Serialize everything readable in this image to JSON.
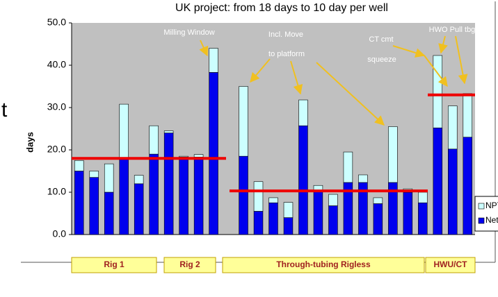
{
  "chart_data": {
    "type": "stacked_bar",
    "title": "UK project: from 18 days to 10 day per well",
    "y_label": "days",
    "left_fragment": "t",
    "categories": [
      null,
      null,
      null,
      null,
      null,
      null,
      null,
      null,
      null,
      null,
      null,
      null,
      null,
      null,
      null,
      null,
      null,
      null,
      null,
      null,
      null,
      null,
      null,
      null,
      null,
      null,
      null
    ],
    "series": [
      {
        "name": "Net",
        "color": "#0000ee",
        "values": [
          15,
          13.5,
          10,
          18,
          12,
          19,
          24,
          18.3,
          18.3,
          38.3,
          null,
          18.5,
          5.5,
          7.5,
          4,
          25.7,
          10.5,
          6.8,
          12.3,
          12.3,
          7.3,
          12.3,
          10,
          7.5,
          25.2,
          20.2,
          23
        ]
      },
      {
        "name": "NPT",
        "color": "#ccffff",
        "values": [
          2.5,
          1.5,
          6.7,
          12.8,
          2,
          6.7,
          0.5,
          0.2,
          0.6,
          5.7,
          null,
          16.5,
          7,
          1.2,
          3.6,
          6.1,
          1.1,
          2.7,
          7.2,
          1.8,
          1.4,
          13.2,
          0.8,
          2.5,
          17.1,
          10.2,
          10.3
        ]
      }
    ],
    "ylim": [
      0,
      50
    ],
    "yticks": [
      {
        "value": 0,
        "label": "0.0"
      },
      {
        "value": 10,
        "label": "10.0"
      },
      {
        "value": 20,
        "label": "20.0"
      },
      {
        "value": 30,
        "label": "30.0"
      },
      {
        "value": 40,
        "label": "40.0"
      },
      {
        "value": 50,
        "label": "50.0"
      }
    ],
    "reference_lines": [
      18,
      10.3,
      33
    ],
    "reference_color": "#ee0000",
    "annotations": [
      "Milling Window",
      "Incl. Move",
      "to platform",
      "CT cmt",
      "squeeze",
      "HWO Pull tbg"
    ],
    "groups": [
      "Rig 1",
      "Rig 2",
      "Through-tubing Rigless",
      "HWU/CT"
    ]
  }
}
